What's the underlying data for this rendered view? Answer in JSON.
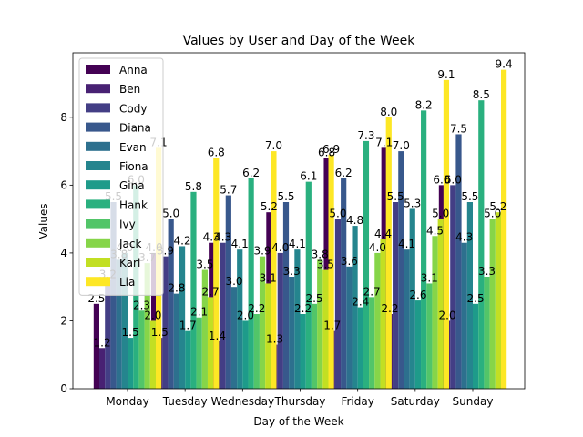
{
  "chart_data": {
    "type": "bar",
    "title": "Values by User and Day of the Week",
    "xlabel": "Day of the Week",
    "ylabel": "Values",
    "ylim": [
      0,
      9.9
    ],
    "yticks": [
      0,
      2,
      4,
      6,
      8
    ],
    "grid": false,
    "legend_position": "top-left",
    "categories": [
      "Monday",
      "Tuesday",
      "Wednesday",
      "Thursday",
      "Friday",
      "Saturday",
      "Sunday"
    ],
    "series": [
      {
        "name": "Anna",
        "color": "#440154",
        "values": [
          2.5,
          4.0,
          4.3,
          5.2,
          6.8,
          7.1,
          6.0
        ]
      },
      {
        "name": "Ben",
        "color": "#482173",
        "values": [
          1.2,
          1.5,
          1.4,
          1.3,
          1.7,
          2.2,
          2.0
        ]
      },
      {
        "name": "Cody",
        "color": "#433e85",
        "values": [
          3.2,
          3.9,
          4.3,
          4.0,
          5.0,
          5.5,
          6.0
        ]
      },
      {
        "name": "Diana",
        "color": "#38588c",
        "values": [
          5.5,
          5.0,
          5.7,
          5.5,
          6.2,
          7.0,
          7.5
        ]
      },
      {
        "name": "Evan",
        "color": "#2d708e",
        "values": [
          3.8,
          2.8,
          3.0,
          3.3,
          3.6,
          4.1,
          4.3
        ]
      },
      {
        "name": "Fiona",
        "color": "#25858e",
        "values": [
          4.0,
          4.2,
          4.1,
          4.1,
          4.8,
          5.3,
          5.5
        ]
      },
      {
        "name": "Gina",
        "color": "#1e9b8a",
        "values": [
          1.5,
          1.7,
          2.0,
          2.2,
          2.4,
          2.6,
          2.5
        ]
      },
      {
        "name": "Hank",
        "color": "#2ab07f",
        "values": [
          6.0,
          5.8,
          6.2,
          6.1,
          7.3,
          8.2,
          8.5
        ]
      },
      {
        "name": "Ivy",
        "color": "#52c569",
        "values": [
          2.3,
          2.1,
          2.2,
          2.5,
          2.7,
          3.1,
          3.3
        ]
      },
      {
        "name": "Jack",
        "color": "#86d549",
        "values": [
          3.7,
          3.5,
          3.9,
          3.8,
          4.0,
          4.5,
          5.0
        ]
      },
      {
        "name": "Karl",
        "color": "#c2df23",
        "values": [
          2.0,
          2.7,
          3.1,
          3.5,
          4.4,
          5.0,
          5.2
        ]
      },
      {
        "name": "Lia",
        "color": "#fde725",
        "values": [
          7.1,
          6.8,
          7.0,
          6.9,
          8.0,
          9.1,
          9.4
        ]
      }
    ]
  }
}
